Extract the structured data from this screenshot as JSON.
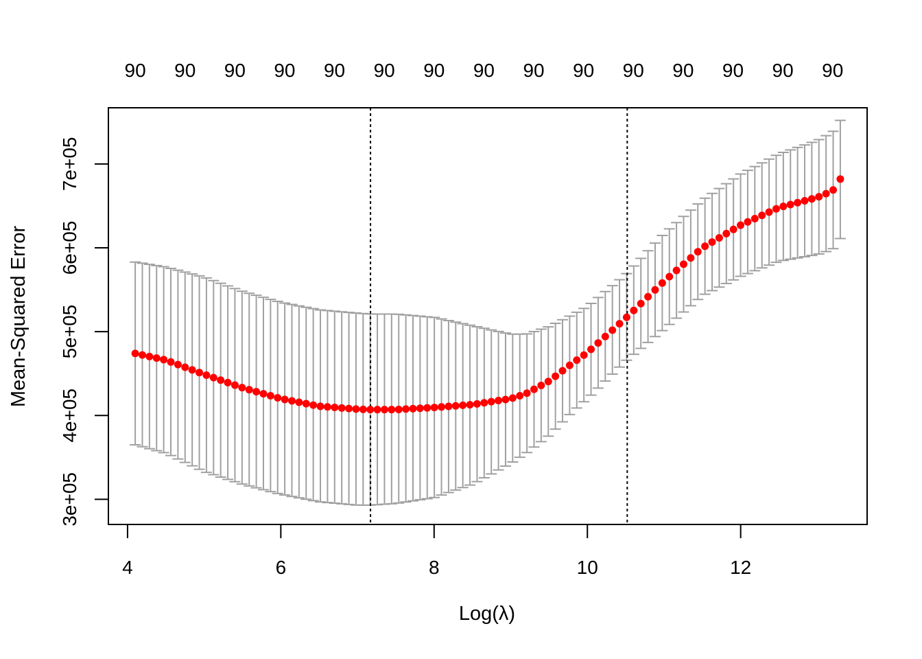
{
  "chart_data": {
    "type": "scatter",
    "title": "",
    "xlabel": "Log(λ)",
    "ylabel": "Mean-Squared Error",
    "xlim": [
      3.75,
      13.65
    ],
    "ylim": [
      270000,
      767000
    ],
    "x_ticks": [
      4,
      6,
      8,
      10,
      12
    ],
    "x_tick_labels": [
      "4",
      "6",
      "8",
      "10",
      "12"
    ],
    "y_ticks": [
      300000,
      400000,
      500000,
      600000,
      700000
    ],
    "y_tick_labels": [
      "3e+05",
      "4e+05",
      "5e+05",
      "6e+05",
      "7e+05"
    ],
    "top_axis_labels": [
      "90",
      "90",
      "90",
      "90",
      "90",
      "90",
      "90",
      "90",
      "90",
      "90",
      "90",
      "90",
      "90",
      "90",
      "90"
    ],
    "top_axis_positions": [
      4.1,
      4.75,
      5.4,
      6.05,
      6.7,
      7.35,
      8.0,
      8.65,
      9.3,
      9.95,
      10.6,
      11.25,
      11.9,
      12.55,
      13.2
    ],
    "vlines": [
      7.17,
      10.52
    ],
    "point_color": "#ff0000",
    "errorbar_color": "#a0a0a0",
    "grid": false,
    "series": [
      {
        "x_start": 4.1,
        "x_end": 13.3,
        "n_points": 100,
        "mean": [
          [
            4.1,
            474000
          ],
          [
            4.5,
            466000
          ],
          [
            5.0,
            449000
          ],
          [
            5.5,
            433000
          ],
          [
            6.0,
            420000
          ],
          [
            6.5,
            411000
          ],
          [
            7.0,
            407500
          ],
          [
            7.17,
            407000
          ],
          [
            7.5,
            407000
          ],
          [
            8.0,
            409500
          ],
          [
            8.5,
            413000
          ],
          [
            9.0,
            420000
          ],
          [
            9.2,
            426000
          ],
          [
            9.5,
            441000
          ],
          [
            9.8,
            462000
          ],
          [
            10.0,
            475000
          ],
          [
            10.5,
            516000
          ],
          [
            11.0,
            560000
          ],
          [
            11.5,
            600000
          ],
          [
            12.0,
            627000
          ],
          [
            12.5,
            648000
          ],
          [
            13.0,
            660000
          ],
          [
            13.2,
            668000
          ],
          [
            13.3,
            682000
          ]
        ],
        "upper": [
          [
            4.1,
            583000
          ],
          [
            4.5,
            577000
          ],
          [
            5.0,
            565000
          ],
          [
            5.5,
            548000
          ],
          [
            6.0,
            535000
          ],
          [
            6.5,
            526000
          ],
          [
            7.0,
            522000
          ],
          [
            7.17,
            521000
          ],
          [
            7.5,
            521000
          ],
          [
            8.0,
            517000
          ],
          [
            8.5,
            507000
          ],
          [
            9.0,
            497000
          ],
          [
            9.2,
            497000
          ],
          [
            9.5,
            506000
          ],
          [
            9.8,
            520000
          ],
          [
            10.0,
            530000
          ],
          [
            10.5,
            568000
          ],
          [
            11.0,
            617000
          ],
          [
            11.5,
            657000
          ],
          [
            12.0,
            688000
          ],
          [
            12.5,
            712000
          ],
          [
            13.0,
            728000
          ],
          [
            13.2,
            738000
          ],
          [
            13.3,
            752000
          ]
        ],
        "lower": [
          [
            4.1,
            365000
          ],
          [
            4.5,
            355000
          ],
          [
            5.0,
            333000
          ],
          [
            5.5,
            318000
          ],
          [
            6.0,
            306000
          ],
          [
            6.5,
            297000
          ],
          [
            7.0,
            293000
          ],
          [
            7.17,
            293000
          ],
          [
            7.5,
            295000
          ],
          [
            8.0,
            302000
          ],
          [
            8.5,
            318000
          ],
          [
            9.0,
            343000
          ],
          [
            9.2,
            355000
          ],
          [
            9.5,
            376000
          ],
          [
            9.8,
            404000
          ],
          [
            10.0,
            420000
          ],
          [
            10.5,
            465000
          ],
          [
            11.0,
            503000
          ],
          [
            11.5,
            543000
          ],
          [
            12.0,
            566000
          ],
          [
            12.5,
            584000
          ],
          [
            13.0,
            592000
          ],
          [
            13.2,
            598000
          ],
          [
            13.3,
            611000
          ]
        ]
      }
    ]
  }
}
